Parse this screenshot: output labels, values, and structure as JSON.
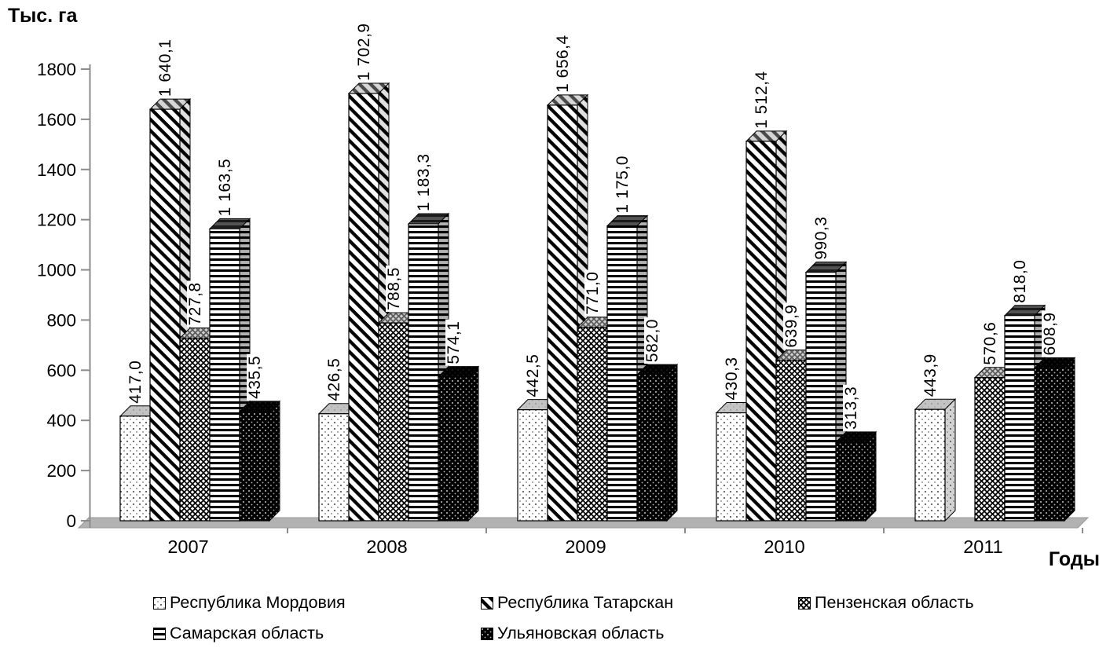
{
  "chart_data": {
    "type": "bar",
    "title": "",
    "ylabel": "Тыс. га",
    "xlabel": "Годы",
    "ylim": [
      0,
      1800
    ],
    "yticks": [
      0,
      200,
      400,
      600,
      800,
      1000,
      1200,
      1400,
      1600,
      1800
    ],
    "grid": false,
    "legend_position": "bottom",
    "style": "3d-monochrome-patterned-columns",
    "categories": [
      "2007",
      "2008",
      "2009",
      "2010",
      "2011"
    ],
    "series": [
      {
        "name": "Республика Мордовия",
        "pattern": "dots-light",
        "values": [
          417.0,
          426.5,
          442.5,
          430.3,
          443.9
        ],
        "labels": [
          "417,0",
          "426,5",
          "442,5",
          "430,3",
          "443,9"
        ]
      },
      {
        "name": "Республика Татарскан",
        "pattern": "diagonal",
        "values": [
          1640.1,
          1702.9,
          1656.4,
          1512.4,
          null
        ],
        "labels": [
          "1 640,1",
          "1 702,9",
          "1 656,4",
          "1 512,4",
          ""
        ]
      },
      {
        "name": "Пензенская область",
        "pattern": "crosshatch",
        "values": [
          727.8,
          788.5,
          771.0,
          639.9,
          570.6
        ],
        "labels": [
          "727,8",
          "788,5",
          "771,0",
          "639,9",
          "570,6"
        ]
      },
      {
        "name": "Самарская область",
        "pattern": "hlines",
        "values": [
          1163.5,
          1183.3,
          1175.0,
          990.3,
          818.0
        ],
        "labels": [
          "1 163,5",
          "1 183,3",
          "1 175,0",
          "990,3",
          "818,0"
        ]
      },
      {
        "name": "Ульяновская область",
        "pattern": "dots-dark",
        "values": [
          435.5,
          574.1,
          582.0,
          313.3,
          608.9
        ],
        "labels": [
          "435,5",
          "574,1",
          "582,0",
          "313,3",
          "608,9"
        ]
      }
    ]
  },
  "colors": {
    "ink": "#000000",
    "background": "#ffffff",
    "floor": "#b2b2b2",
    "axis": "#8c8c8c"
  }
}
